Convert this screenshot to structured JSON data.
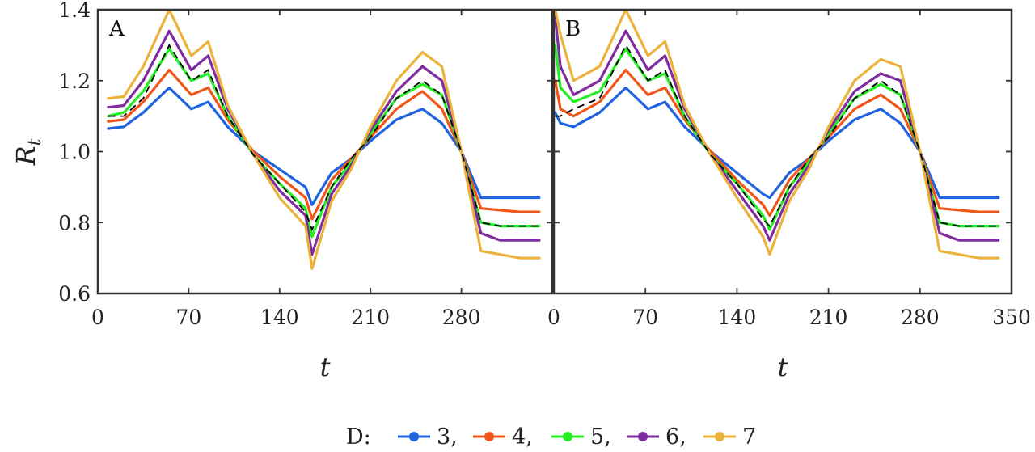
{
  "chart_data": [
    {
      "type": "line",
      "panel_label": "A",
      "ylabel": "R",
      "ylabel_sub": "t",
      "xlabel": "t",
      "xlim": [
        0,
        350
      ],
      "ylim": [
        0.6,
        1.4
      ],
      "xticks": [
        "0",
        "70",
        "140",
        "210",
        "280"
      ],
      "yticks": [
        "0.6",
        "0.8",
        "1.0",
        "1.2",
        "1.4"
      ],
      "grid": false,
      "x": [
        8,
        20,
        35,
        55,
        72,
        85,
        100,
        120,
        140,
        160,
        165,
        180,
        195,
        210,
        230,
        250,
        265,
        280,
        295,
        310,
        325,
        340
      ],
      "series": [
        {
          "name": "3",
          "color": "#1f63e0",
          "values": [
            1.065,
            1.07,
            1.11,
            1.18,
            1.12,
            1.14,
            1.07,
            1.0,
            0.95,
            0.9,
            0.85,
            0.94,
            0.98,
            1.03,
            1.09,
            1.12,
            1.08,
            1.0,
            0.87,
            0.87,
            0.87,
            0.87
          ]
        },
        {
          "name": "4",
          "color": "#f0561a",
          "values": [
            1.085,
            1.09,
            1.14,
            1.23,
            1.16,
            1.18,
            1.09,
            1.0,
            0.93,
            0.87,
            0.81,
            0.92,
            0.98,
            1.04,
            1.12,
            1.17,
            1.12,
            1.0,
            0.84,
            0.835,
            0.83,
            0.83
          ]
        },
        {
          "name": "5",
          "color": "#22ee22",
          "values": [
            1.1,
            1.11,
            1.17,
            1.29,
            1.2,
            1.22,
            1.1,
            0.99,
            0.91,
            0.84,
            0.76,
            0.9,
            0.97,
            1.05,
            1.15,
            1.19,
            1.16,
            1.0,
            0.8,
            0.79,
            0.79,
            0.79
          ]
        },
        {
          "name": "6",
          "color": "#7e2c9e",
          "values": [
            1.125,
            1.13,
            1.2,
            1.34,
            1.23,
            1.27,
            1.12,
            0.99,
            0.89,
            0.82,
            0.71,
            0.88,
            0.96,
            1.06,
            1.17,
            1.24,
            1.2,
            1.0,
            0.77,
            0.75,
            0.75,
            0.75
          ]
        },
        {
          "name": "7",
          "color": "#ebb23c",
          "values": [
            1.15,
            1.155,
            1.24,
            1.4,
            1.27,
            1.31,
            1.13,
            0.99,
            0.87,
            0.79,
            0.67,
            0.86,
            0.95,
            1.07,
            1.2,
            1.28,
            1.24,
            1.0,
            0.72,
            0.71,
            0.7,
            0.7
          ]
        }
      ],
      "reference": {
        "color": "#000000",
        "style": "dashed",
        "values": [
          1.1,
          1.1,
          1.15,
          1.3,
          1.2,
          1.23,
          1.1,
          0.99,
          0.91,
          0.83,
          0.78,
          0.9,
          0.98,
          1.04,
          1.15,
          1.2,
          1.16,
          1.0,
          0.8,
          0.79,
          0.79,
          0.79
        ]
      }
    },
    {
      "type": "line",
      "panel_label": "B",
      "xlabel": "t",
      "xlim": [
        0,
        350
      ],
      "ylim": [
        0.6,
        1.4
      ],
      "xticks": [
        "0",
        "70",
        "140",
        "210",
        "280",
        "350"
      ],
      "grid": false,
      "x": [
        1,
        5,
        15,
        35,
        55,
        72,
        85,
        100,
        120,
        140,
        160,
        165,
        180,
        195,
        210,
        230,
        250,
        265,
        280,
        295,
        310,
        325,
        340
      ],
      "series": [
        {
          "name": "3",
          "color": "#1f63e0",
          "values": [
            1.11,
            1.08,
            1.07,
            1.11,
            1.18,
            1.12,
            1.14,
            1.07,
            1.0,
            0.94,
            0.88,
            0.87,
            0.94,
            0.98,
            1.03,
            1.09,
            1.12,
            1.08,
            1.0,
            0.87,
            0.87,
            0.87,
            0.87
          ]
        },
        {
          "name": "4",
          "color": "#f0561a",
          "values": [
            1.2,
            1.12,
            1.1,
            1.14,
            1.23,
            1.16,
            1.18,
            1.09,
            1.0,
            0.92,
            0.85,
            0.82,
            0.92,
            0.98,
            1.04,
            1.12,
            1.16,
            1.12,
            1.0,
            0.84,
            0.835,
            0.83,
            0.83
          ]
        },
        {
          "name": "5",
          "color": "#22ee22",
          "values": [
            1.3,
            1.18,
            1.14,
            1.17,
            1.29,
            1.2,
            1.22,
            1.1,
            0.99,
            0.91,
            0.82,
            0.78,
            0.9,
            0.97,
            1.05,
            1.15,
            1.19,
            1.16,
            1.0,
            0.8,
            0.79,
            0.79,
            0.79
          ]
        },
        {
          "name": "6",
          "color": "#7e2c9e",
          "values": [
            1.38,
            1.24,
            1.16,
            1.2,
            1.34,
            1.23,
            1.27,
            1.12,
            0.99,
            0.89,
            0.79,
            0.75,
            0.88,
            0.96,
            1.06,
            1.17,
            1.22,
            1.2,
            1.0,
            0.77,
            0.75,
            0.75,
            0.75
          ]
        },
        {
          "name": "7",
          "color": "#ebb23c",
          "values": [
            1.4,
            1.33,
            1.2,
            1.24,
            1.4,
            1.27,
            1.31,
            1.13,
            0.99,
            0.87,
            0.76,
            0.71,
            0.86,
            0.95,
            1.07,
            1.2,
            1.26,
            1.24,
            1.0,
            0.72,
            0.71,
            0.7,
            0.7
          ]
        }
      ],
      "reference": {
        "color": "#000000",
        "style": "dashed",
        "values": [
          1.1,
          1.1,
          1.12,
          1.15,
          1.3,
          1.2,
          1.23,
          1.1,
          0.99,
          0.91,
          0.81,
          0.79,
          0.9,
          0.98,
          1.04,
          1.15,
          1.2,
          1.16,
          1.0,
          0.8,
          0.79,
          0.79,
          0.79
        ]
      }
    }
  ],
  "legend": {
    "title": "D:",
    "placement": "bottom-center",
    "items": [
      {
        "label": "3,",
        "color": "#1f63e0"
      },
      {
        "label": "4,",
        "color": "#f0561a"
      },
      {
        "label": "5,",
        "color": "#22ee22"
      },
      {
        "label": "6,",
        "color": "#7e2c9e"
      },
      {
        "label": "7",
        "color": "#ebb23c"
      }
    ]
  }
}
